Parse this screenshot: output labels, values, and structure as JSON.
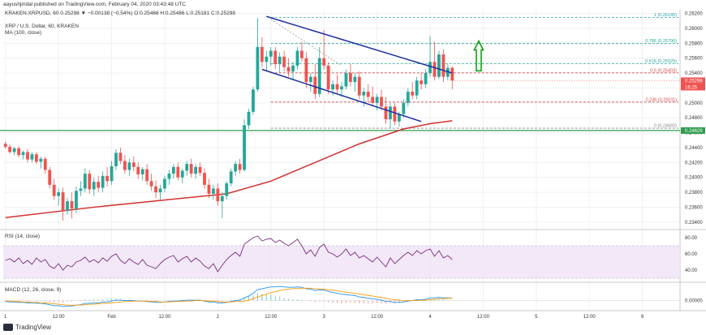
{
  "header": {
    "text": "aayushjindal published on TradingView.com, February 04, 2020 03:43:48 UTC"
  },
  "main_info": {
    "symbol_line": "KRAKEN:XRPUSD, 60  0.25298  ▼ −0.00138 (−0.54%)  O:0.25466  H:0.25486  L:0.25181  C:0.25298",
    "title": "XRP / U.S. Dollar, 60, KRAKEN",
    "ma_label": "MA (100, close)"
  },
  "rsi_info": {
    "label": "RSI (14, close)"
  },
  "macd_info": {
    "label": "MACD (12, 26, close, 9)"
  },
  "footer": {
    "brand": "TradingView"
  },
  "colors": {
    "up": "#26a69a",
    "down": "#ef5350",
    "ma": "#d32f2f",
    "channel": "#1a2fa0",
    "arrow": "#12a012",
    "support": "#2e9e4e",
    "rsi": "#7a2c7e",
    "macd": "#2196f3",
    "signal": "#ff9800"
  },
  "chart_data": [
    {
      "type": "candlestick",
      "ylim": [
        0.233,
        0.2625
      ],
      "price_ticks": [
        "0.26200",
        "0.26000",
        "0.25800",
        "0.25600",
        "0.25400",
        "0.25200",
        "0.25000",
        "0.24800",
        "0.24600",
        "0.24400",
        "0.24200",
        "0.24000",
        "0.23800",
        "0.23600",
        "0.23400"
      ],
      "time_labels": [
        {
          "i": 0,
          "label": "1"
        },
        {
          "i": 12,
          "label": "12:00"
        },
        {
          "i": 24,
          "label": "Feb"
        },
        {
          "i": 36,
          "label": "12:00"
        },
        {
          "i": 48,
          "label": "2"
        },
        {
          "i": 60,
          "label": "12:00"
        },
        {
          "i": 72,
          "label": "3"
        },
        {
          "i": 84,
          "label": "12:00"
        },
        {
          "i": 96,
          "label": "4"
        },
        {
          "i": 108,
          "label": "12:00"
        },
        {
          "i": 120,
          "label": "5"
        },
        {
          "i": 132,
          "label": "12:00"
        },
        {
          "i": 144,
          "label": "6"
        }
      ],
      "n_slots": 153,
      "candles": [
        [
          0.2445,
          0.2448,
          0.2438,
          0.2441
        ],
        [
          0.2441,
          0.2444,
          0.2432,
          0.2434
        ],
        [
          0.2434,
          0.2441,
          0.243,
          0.2439
        ],
        [
          0.2439,
          0.2442,
          0.2427,
          0.243
        ],
        [
          0.243,
          0.2436,
          0.2424,
          0.2434
        ],
        [
          0.2434,
          0.2438,
          0.242,
          0.2424
        ],
        [
          0.2424,
          0.2434,
          0.242,
          0.2431
        ],
        [
          0.2431,
          0.2434,
          0.2418,
          0.2421
        ],
        [
          0.2421,
          0.2428,
          0.2412,
          0.2425
        ],
        [
          0.2425,
          0.2428,
          0.2405,
          0.241
        ],
        [
          0.241,
          0.2414,
          0.2385,
          0.239
        ],
        [
          0.239,
          0.2398,
          0.237,
          0.2375
        ],
        [
          0.2375,
          0.2385,
          0.2362,
          0.238
        ],
        [
          0.238,
          0.2386,
          0.2342,
          0.2355
        ],
        [
          0.2355,
          0.2372,
          0.235,
          0.2368
        ],
        [
          0.2368,
          0.238,
          0.2345,
          0.2358
        ],
        [
          0.2358,
          0.2388,
          0.2352,
          0.2382
        ],
        [
          0.2382,
          0.2395,
          0.2375,
          0.2385
        ],
        [
          0.2385,
          0.2412,
          0.238,
          0.2405
        ],
        [
          0.2405,
          0.241,
          0.2378,
          0.2384
        ],
        [
          0.2384,
          0.24,
          0.2375,
          0.2394
        ],
        [
          0.2394,
          0.2402,
          0.238,
          0.2386
        ],
        [
          0.2386,
          0.2408,
          0.238,
          0.2402
        ],
        [
          0.2402,
          0.2414,
          0.2388,
          0.2395
        ],
        [
          0.2395,
          0.2422,
          0.239,
          0.2415
        ],
        [
          0.2415,
          0.2438,
          0.241,
          0.2433
        ],
        [
          0.2433,
          0.244,
          0.2418,
          0.2422
        ],
        [
          0.2422,
          0.243,
          0.2405,
          0.241
        ],
        [
          0.241,
          0.2425,
          0.2402,
          0.242
        ],
        [
          0.242,
          0.2428,
          0.2408,
          0.2414
        ],
        [
          0.2414,
          0.242,
          0.2398,
          0.2404
        ],
        [
          0.2404,
          0.2414,
          0.2396,
          0.2411
        ],
        [
          0.2411,
          0.2418,
          0.239,
          0.2395
        ],
        [
          0.2395,
          0.2405,
          0.2382,
          0.2388
        ],
        [
          0.2388,
          0.2396,
          0.2372,
          0.238
        ],
        [
          0.238,
          0.239,
          0.237,
          0.2385
        ],
        [
          0.2385,
          0.2402,
          0.238,
          0.2398
        ],
        [
          0.2398,
          0.241,
          0.239,
          0.2405
        ],
        [
          0.2405,
          0.2418,
          0.2398,
          0.2414
        ],
        [
          0.2414,
          0.242,
          0.2396,
          0.24
        ],
        [
          0.24,
          0.2412,
          0.2392,
          0.2409
        ],
        [
          0.2409,
          0.2422,
          0.2402,
          0.2418
        ],
        [
          0.2418,
          0.2425,
          0.24,
          0.2405
        ],
        [
          0.2405,
          0.2418,
          0.2398,
          0.2414
        ],
        [
          0.2414,
          0.242,
          0.2402,
          0.2406
        ],
        [
          0.2406,
          0.2412,
          0.2385,
          0.239
        ],
        [
          0.239,
          0.2398,
          0.2372,
          0.2378
        ],
        [
          0.2378,
          0.239,
          0.237,
          0.2385
        ],
        [
          0.2385,
          0.2392,
          0.2362,
          0.2368
        ],
        [
          0.2368,
          0.238,
          0.2345,
          0.2375
        ],
        [
          0.2375,
          0.2395,
          0.237,
          0.2392
        ],
        [
          0.2392,
          0.2412,
          0.2388,
          0.2408
        ],
        [
          0.2408,
          0.2422,
          0.2402,
          0.2418
        ],
        [
          0.2418,
          0.2425,
          0.2405,
          0.241
        ],
        [
          0.241,
          0.2478,
          0.2408,
          0.247
        ],
        [
          0.247,
          0.2492,
          0.2465,
          0.2488
        ],
        [
          0.2488,
          0.2522,
          0.2484,
          0.2518
        ],
        [
          0.2518,
          0.2614,
          0.2515,
          0.2575
        ],
        [
          0.2575,
          0.2588,
          0.2548,
          0.2555
        ],
        [
          0.2555,
          0.257,
          0.2542,
          0.2562
        ],
        [
          0.2562,
          0.2575,
          0.255,
          0.257
        ],
        [
          0.257,
          0.2575,
          0.2545,
          0.2552
        ],
        [
          0.2552,
          0.2568,
          0.254,
          0.2562
        ],
        [
          0.2562,
          0.257,
          0.2542,
          0.2548
        ],
        [
          0.2548,
          0.256,
          0.2535,
          0.2542
        ],
        [
          0.2542,
          0.2555,
          0.253,
          0.255
        ],
        [
          0.255,
          0.2575,
          0.2545,
          0.257
        ],
        [
          0.257,
          0.2582,
          0.2555,
          0.256
        ],
        [
          0.256,
          0.2568,
          0.252,
          0.2528
        ],
        [
          0.2528,
          0.254,
          0.2515,
          0.2535
        ],
        [
          0.2535,
          0.2552,
          0.2505,
          0.2512
        ],
        [
          0.2512,
          0.2575,
          0.2508,
          0.256
        ],
        [
          0.256,
          0.2598,
          0.2545,
          0.255
        ],
        [
          0.255,
          0.2555,
          0.2512,
          0.2518
        ],
        [
          0.2518,
          0.253,
          0.251,
          0.2525
        ],
        [
          0.2525,
          0.2538,
          0.2512,
          0.2518
        ],
        [
          0.2518,
          0.2528,
          0.2508,
          0.2522
        ],
        [
          0.2522,
          0.2545,
          0.2518,
          0.254
        ],
        [
          0.254,
          0.2552,
          0.2522,
          0.2528
        ],
        [
          0.2528,
          0.254,
          0.2515,
          0.2535
        ],
        [
          0.2535,
          0.2542,
          0.2505,
          0.251
        ],
        [
          0.251,
          0.252,
          0.2495,
          0.2515
        ],
        [
          0.2515,
          0.2525,
          0.2502,
          0.2508
        ],
        [
          0.2508,
          0.2522,
          0.2495,
          0.25
        ],
        [
          0.25,
          0.2512,
          0.249,
          0.2508
        ],
        [
          0.2508,
          0.2518,
          0.249,
          0.2495
        ],
        [
          0.2495,
          0.2508,
          0.2472,
          0.2478
        ],
        [
          0.2478,
          0.25,
          0.2466,
          0.2495
        ],
        [
          0.2495,
          0.25,
          0.247,
          0.2475
        ],
        [
          0.2475,
          0.2488,
          0.2468,
          0.2485
        ],
        [
          0.2485,
          0.2505,
          0.248,
          0.25
        ],
        [
          0.25,
          0.252,
          0.2495,
          0.2515
        ],
        [
          0.2515,
          0.2528,
          0.2505,
          0.251
        ],
        [
          0.251,
          0.2535,
          0.2505,
          0.253
        ],
        [
          0.253,
          0.254,
          0.2518,
          0.2525
        ],
        [
          0.2525,
          0.2545,
          0.252,
          0.254
        ],
        [
          0.254,
          0.259,
          0.2535,
          0.2555
        ],
        [
          0.2555,
          0.2582,
          0.253,
          0.2535
        ],
        [
          0.2535,
          0.257,
          0.2532,
          0.2565
        ],
        [
          0.2565,
          0.2572,
          0.2528,
          0.2535
        ],
        [
          0.2535,
          0.2552,
          0.253,
          0.2547
        ],
        [
          0.2547,
          0.2549,
          0.2518,
          0.253
        ]
      ],
      "ma100": [
        [
          0,
          0.2346
        ],
        [
          20,
          0.236
        ],
        [
          40,
          0.2372
        ],
        [
          50,
          0.2378
        ],
        [
          60,
          0.2395
        ],
        [
          70,
          0.242
        ],
        [
          80,
          0.2445
        ],
        [
          90,
          0.2465
        ],
        [
          96,
          0.2472
        ],
        [
          101,
          0.2476
        ]
      ],
      "channel_upper": [
        [
          59,
          0.2616
        ],
        [
          101,
          0.254
        ]
      ],
      "channel_lower": [
        [
          58,
          0.2545
        ],
        [
          94,
          0.2475
        ]
      ],
      "dashed_trend": [
        [
          60,
          0.2612
        ],
        [
          76,
          0.255
        ]
      ],
      "support_level": 0.24629,
      "last_price": "0.25298",
      "countdown": "16:25",
      "support_label": "0.24629",
      "fib_high_start": 60,
      "fib_levels": [
        {
          "label": "1 (0.26145)",
          "value": 0.26145,
          "color": "#2aa1b5"
        },
        {
          "label": "0.786 (0.25796)",
          "value": 0.25796,
          "color": "#26a69a"
        },
        {
          "label": "0.618 (0.25525)",
          "value": 0.25525,
          "color": "#26a69a"
        },
        {
          "label": "0.5 (0.25403)",
          "value": 0.25403,
          "color": "#d04a4a"
        },
        {
          "label": "0.236 (0.25011)",
          "value": 0.25011,
          "color": "#d04a4a"
        },
        {
          "label": "0 (0.24660)",
          "value": 0.2466,
          "color": "#888888"
        }
      ],
      "arrow": {
        "i": 107,
        "from": 0.2543,
        "to": 0.2583
      }
    },
    {
      "type": "line",
      "name": "RSI (14, close)",
      "ylim": [
        25,
        90
      ],
      "ticks": [
        "80.00",
        "60.00",
        "40.00"
      ],
      "band": [
        30,
        70
      ],
      "values": [
        52,
        54,
        50,
        55,
        48,
        52,
        47,
        55,
        50,
        53,
        45,
        42,
        48,
        40,
        46,
        44,
        50,
        52,
        56,
        50,
        53,
        49,
        55,
        51,
        57,
        60,
        52,
        48,
        54,
        50,
        47,
        53,
        46,
        44,
        42,
        48,
        53,
        56,
        58,
        50,
        54,
        57,
        50,
        55,
        51,
        45,
        42,
        48,
        38,
        46,
        53,
        58,
        62,
        57,
        72,
        76,
        80,
        82,
        76,
        78,
        79,
        74,
        77,
        73,
        70,
        74,
        78,
        70,
        60,
        65,
        57,
        68,
        72,
        62,
        60,
        56,
        60,
        66,
        58,
        62,
        55,
        58,
        54,
        50,
        56,
        50,
        44,
        55,
        48,
        53,
        58,
        62,
        58,
        64,
        60,
        64,
        66,
        57,
        64,
        55,
        58,
        53
      ]
    },
    {
      "type": "line",
      "name": "MACD (12, 26, close, 9)",
      "ylim": [
        -0.0022,
        0.004
      ],
      "ticks": [
        "0.00000"
      ],
      "macd": [
        -0.0002,
        -0.0003,
        -0.0003,
        -0.0004,
        -0.0004,
        -0.0005,
        -0.0005,
        -0.0006,
        -0.0006,
        -0.0007,
        -0.0009,
        -0.0011,
        -0.0011,
        -0.0013,
        -0.0012,
        -0.0012,
        -0.001,
        -0.0009,
        -0.0006,
        -0.0006,
        -0.0005,
        -0.0005,
        -0.0003,
        -0.0003,
        -0.0001,
        0.0001,
        0.0001,
        0.0,
        0.0,
        0.0,
        -0.0001,
        -0.0001,
        -0.0002,
        -0.0003,
        -0.0004,
        -0.0004,
        -0.0003,
        -0.0002,
        -0.0001,
        -0.0001,
        0.0,
        0.0001,
        0.0001,
        0.0001,
        0.0001,
        -0.0001,
        -0.0003,
        -0.0003,
        -0.0005,
        -0.0005,
        -0.0004,
        -0.0002,
        0.0,
        0.0001,
        0.0006,
        0.001,
        0.0016,
        0.0024,
        0.0026,
        0.0028,
        0.003,
        0.003,
        0.0031,
        0.003,
        0.0029,
        0.0029,
        0.003,
        0.0029,
        0.0026,
        0.0025,
        0.0022,
        0.0023,
        0.0023,
        0.002,
        0.0018,
        0.0016,
        0.0014,
        0.0013,
        0.0012,
        0.0011,
        0.0008,
        0.0007,
        0.0005,
        0.0004,
        0.0003,
        0.0001,
        -0.0002,
        -0.0002,
        -0.0004,
        -0.0004,
        -0.0003,
        -0.0001,
        0.0,
        0.0002,
        0.0002,
        0.0003,
        0.0006,
        0.0006,
        0.0007,
        0.0006,
        0.0006,
        0.0005
      ],
      "signal": [
        -0.0001,
        -0.0001,
        -0.0002,
        -0.0002,
        -0.0003,
        -0.0003,
        -0.0004,
        -0.0004,
        -0.0005,
        -0.0005,
        -0.0006,
        -0.0007,
        -0.0008,
        -0.0009,
        -0.001,
        -0.001,
        -0.001,
        -0.001,
        -0.0009,
        -0.0008,
        -0.0008,
        -0.0007,
        -0.0006,
        -0.0006,
        -0.0005,
        -0.0004,
        -0.0003,
        -0.0002,
        -0.0002,
        -0.0001,
        -0.0001,
        -0.0001,
        -0.0001,
        -0.0002,
        -0.0002,
        -0.0003,
        -0.0003,
        -0.0003,
        -0.0002,
        -0.0002,
        -0.0002,
        -0.0001,
        -0.0001,
        0.0,
        0.0,
        0.0,
        -0.0001,
        -0.0001,
        -0.0002,
        -0.0003,
        -0.0003,
        -0.0003,
        -0.0002,
        -0.0002,
        -0.0001,
        0.0001,
        0.0004,
        0.0008,
        0.0011,
        0.0014,
        0.0017,
        0.002,
        0.0022,
        0.0024,
        0.0025,
        0.0026,
        0.0027,
        0.0027,
        0.0027,
        0.0027,
        0.0026,
        0.0025,
        0.0025,
        0.0024,
        0.0023,
        0.0021,
        0.002,
        0.0018,
        0.0017,
        0.0016,
        0.0014,
        0.0013,
        0.0011,
        0.001,
        0.0008,
        0.0007,
        0.0005,
        0.0003,
        0.0002,
        0.0001,
        0.0,
        0.0,
        0.0,
        0.0,
        0.0001,
        0.0001,
        0.0002,
        0.0003,
        0.0004,
        0.0004,
        0.0005,
        0.0005
      ]
    }
  ]
}
